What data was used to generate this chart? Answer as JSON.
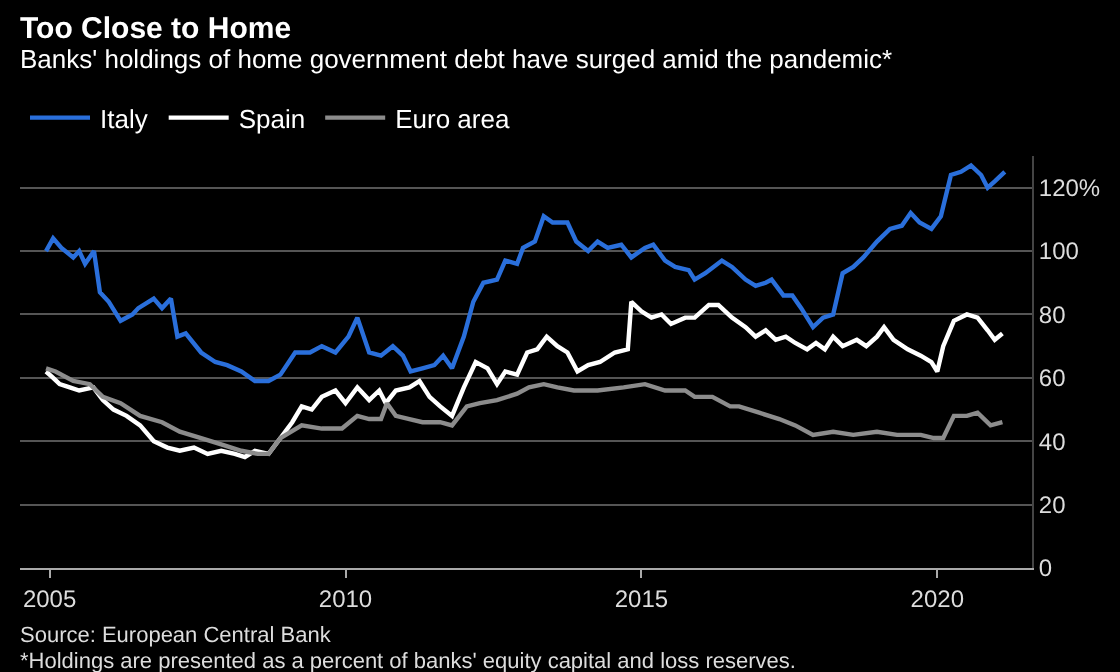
{
  "chart_data": {
    "type": "line",
    "title": "Too Close to Home",
    "subtitle": "Banks' holdings of home government debt have surged amid the pandemic*",
    "annotations": [
      "Source: European Central Bank",
      "*Holdings are presented as a percent of banks' equity capital and loss reserves."
    ],
    "xlim": [
      2004.5,
      2021.6
    ],
    "xticks": [
      2005,
      2010,
      2015,
      2020
    ],
    "ylim": [
      0,
      130
    ],
    "yticks": [
      0,
      20,
      40,
      60,
      80,
      100,
      {
        "value": 120,
        "label": "120%"
      }
    ],
    "grid": "y",
    "legend": "top left",
    "series": [
      {
        "name": "Italy",
        "color": "#2a6fdb",
        "x": [
          2004.94,
          2005.06,
          2005.2,
          2005.4,
          2005.5,
          2005.6,
          2005.75,
          2005.85,
          2006.0,
          2006.2,
          2006.4,
          2006.5,
          2006.76,
          2006.9,
          2007.05,
          2007.16,
          2007.3,
          2007.56,
          2007.8,
          2008.0,
          2008.24,
          2008.47,
          2008.7,
          2008.9,
          2009.15,
          2009.4,
          2009.6,
          2009.83,
          2010.05,
          2010.2,
          2010.4,
          2010.6,
          2010.8,
          2010.97,
          2011.1,
          2011.3,
          2011.5,
          2011.65,
          2011.8,
          2012.0,
          2012.16,
          2012.33,
          2012.56,
          2012.7,
          2012.9,
          2013.0,
          2013.2,
          2013.35,
          2013.5,
          2013.75,
          2013.9,
          2014.1,
          2014.26,
          2014.43,
          2014.66,
          2014.83,
          2015.06,
          2015.2,
          2015.4,
          2015.57,
          2015.8,
          2015.9,
          2016.08,
          2016.36,
          2016.53,
          2016.76,
          2016.93,
          2017.1,
          2017.2,
          2017.4,
          2017.55,
          2017.7,
          2017.9,
          2018.07,
          2018.24,
          2018.4,
          2018.58,
          2018.75,
          2018.98,
          2019.2,
          2019.4,
          2019.55,
          2019.7,
          2019.9,
          2020.06,
          2020.23,
          2020.4,
          2020.57,
          2020.74,
          2020.85,
          2020.97,
          2021.14
        ],
        "values": [
          100,
          104,
          101,
          98,
          100,
          96,
          100,
          87,
          84,
          78,
          80,
          82,
          85,
          82,
          85,
          73,
          74,
          68,
          65,
          64,
          62,
          59,
          59,
          61,
          68,
          68,
          70,
          68,
          73,
          79,
          68,
          67,
          70,
          67,
          62,
          63,
          64,
          67,
          63,
          73,
          84,
          90,
          91,
          97,
          96,
          101,
          103,
          111,
          109,
          109,
          103,
          100,
          103,
          101,
          102,
          98,
          101,
          102,
          97,
          95,
          94,
          91,
          93,
          97,
          95,
          91,
          89,
          90,
          91,
          86,
          86,
          82,
          76,
          79,
          80,
          93,
          95,
          98,
          103,
          107,
          108,
          112,
          109,
          107,
          111,
          124,
          125,
          127,
          124,
          120,
          122,
          125
        ]
      },
      {
        "name": "Spain",
        "color": "#ffffff",
        "x": [
          2004.94,
          2005.06,
          2005.17,
          2005.34,
          2005.5,
          2005.74,
          2005.9,
          2006.08,
          2006.3,
          2006.53,
          2006.76,
          2006.99,
          2007.2,
          2007.44,
          2007.67,
          2007.9,
          2008.13,
          2008.3,
          2008.47,
          2008.7,
          2008.86,
          2009.1,
          2009.26,
          2009.43,
          2009.6,
          2009.83,
          2010.0,
          2010.2,
          2010.4,
          2010.57,
          2010.68,
          2010.85,
          2011.08,
          2011.25,
          2011.42,
          2011.6,
          2011.8,
          2012.0,
          2012.2,
          2012.4,
          2012.56,
          2012.7,
          2012.9,
          2013.07,
          2013.24,
          2013.4,
          2013.58,
          2013.75,
          2013.92,
          2014.1,
          2014.3,
          2014.55,
          2014.77,
          2014.83,
          2015.0,
          2015.17,
          2015.34,
          2015.5,
          2015.74,
          2015.9,
          2016.14,
          2016.3,
          2016.53,
          2016.76,
          2016.93,
          2017.1,
          2017.27,
          2017.44,
          2017.6,
          2017.8,
          2017.95,
          2018.1,
          2018.24,
          2018.4,
          2018.64,
          2018.8,
          2018.98,
          2019.1,
          2019.26,
          2019.5,
          2019.72,
          2019.9,
          2020.0,
          2020.1,
          2020.28,
          2020.5,
          2020.68,
          2020.85,
          2020.97,
          2021.1
        ],
        "values": [
          62,
          60,
          58,
          57,
          56,
          57,
          53,
          50,
          48,
          45,
          40,
          38,
          37,
          38,
          36,
          37,
          36,
          35,
          37,
          36,
          40,
          46,
          51,
          50,
          54,
          56,
          52,
          57,
          53,
          56,
          52,
          56,
          57,
          59,
          54,
          51,
          48,
          57,
          65,
          63,
          58,
          62,
          61,
          68,
          69,
          73,
          70,
          68,
          62,
          64,
          65,
          68,
          69,
          84,
          81,
          79,
          80,
          77,
          79,
          79,
          83,
          83,
          79,
          76,
          73,
          75,
          72,
          73,
          71,
          69,
          71,
          69,
          73,
          70,
          72,
          70,
          73,
          76,
          72,
          69,
          67,
          65,
          62,
          70,
          78,
          80,
          79,
          75,
          72,
          74
        ]
      },
      {
        "name": "Euro area",
        "color": "#8c8c8c",
        "x": [
          2004.94,
          2005.1,
          2005.4,
          2005.68,
          2005.9,
          2006.2,
          2006.53,
          2006.9,
          2007.2,
          2007.56,
          2007.9,
          2008.24,
          2008.52,
          2008.7,
          2008.9,
          2009.26,
          2009.6,
          2009.94,
          2010.2,
          2010.4,
          2010.6,
          2010.7,
          2010.85,
          2011.08,
          2011.3,
          2011.6,
          2011.8,
          2012.05,
          2012.27,
          2012.56,
          2012.9,
          2013.1,
          2013.35,
          2013.58,
          2013.86,
          2014.26,
          2014.7,
          2015.06,
          2015.4,
          2015.74,
          2015.9,
          2016.2,
          2016.5,
          2016.65,
          2016.99,
          2017.33,
          2017.6,
          2017.9,
          2018.24,
          2018.58,
          2018.98,
          2019.32,
          2019.72,
          2019.94,
          2020.1,
          2020.28,
          2020.5,
          2020.68,
          2020.9,
          2021.1
        ],
        "values": [
          63,
          62,
          59,
          58,
          54,
          52,
          48,
          46,
          43,
          41,
          39,
          37,
          36,
          36,
          41,
          45,
          44,
          44,
          48,
          47,
          47,
          52,
          48,
          47,
          46,
          46,
          45,
          51,
          52,
          53,
          55,
          57,
          58,
          57,
          56,
          56,
          57,
          58,
          56,
          56,
          54,
          54,
          51,
          51,
          49,
          47,
          45,
          42,
          43,
          42,
          43,
          42,
          42,
          41,
          41,
          48,
          48,
          49,
          45,
          46
        ]
      }
    ]
  }
}
